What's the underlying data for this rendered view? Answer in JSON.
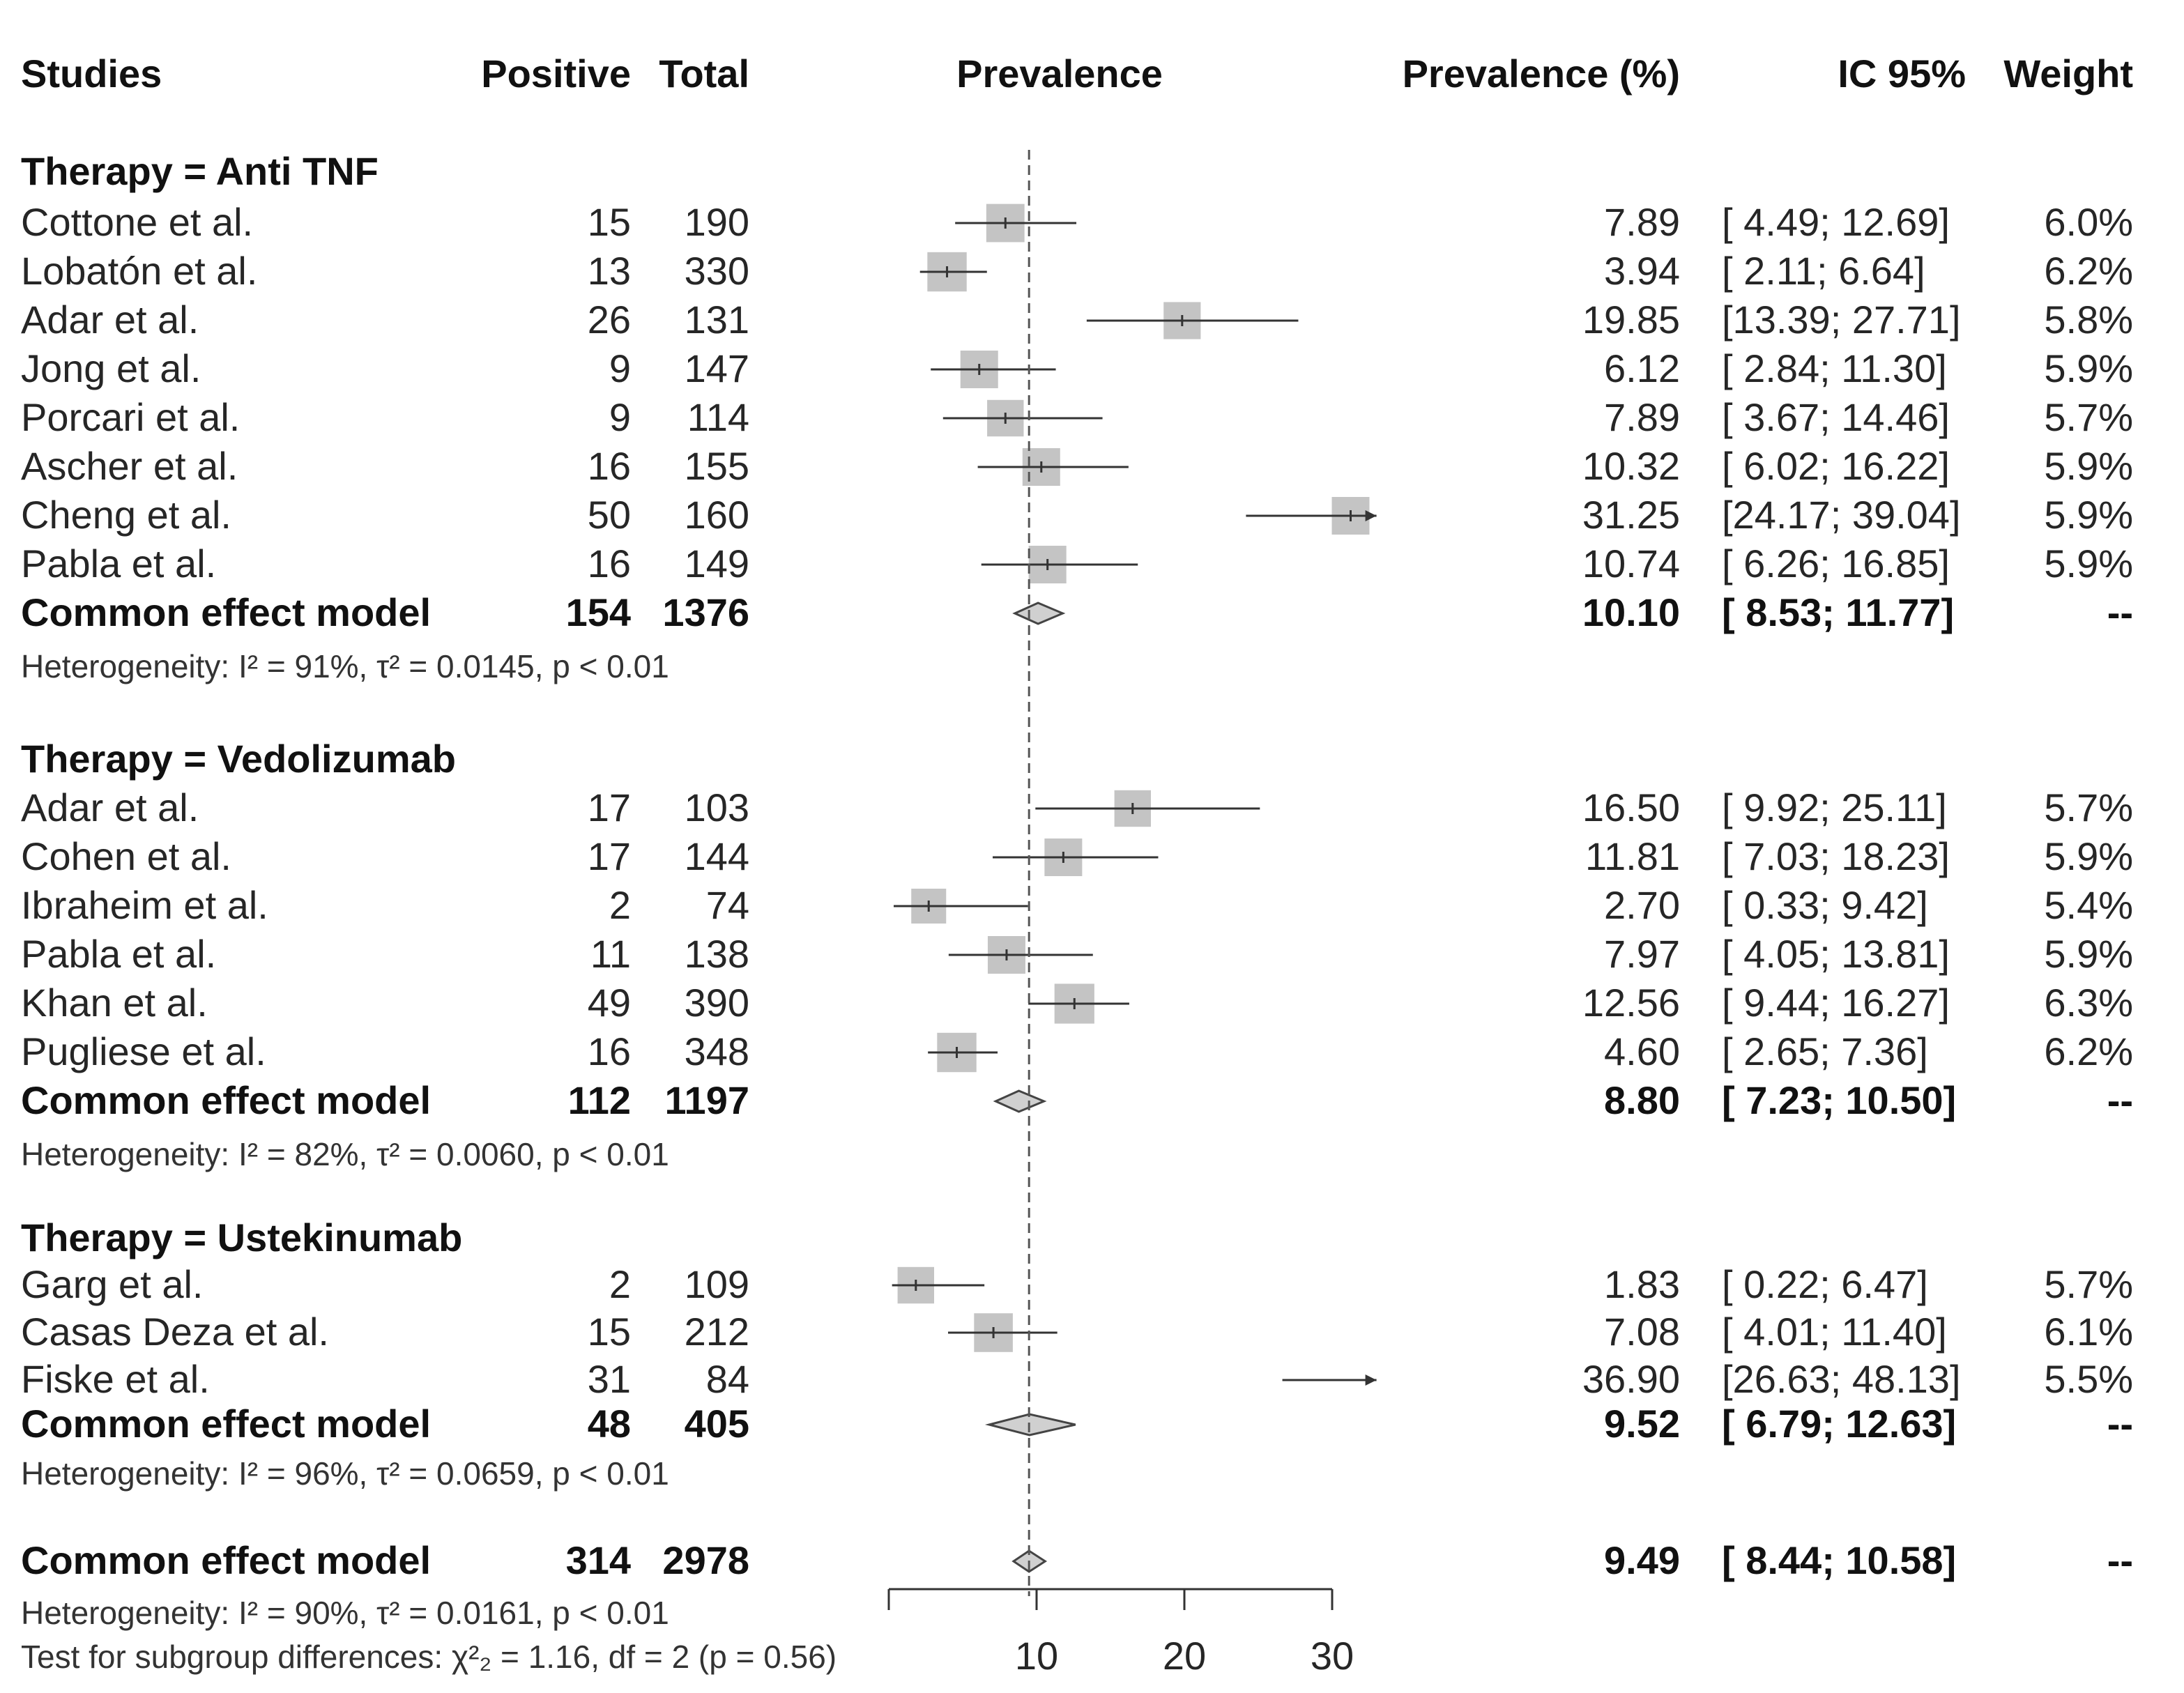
{
  "headers": {
    "studies": "Studies",
    "positive": "Positive",
    "total": "Total",
    "prevalence": "Prevalence",
    "prevalence_pct": "Prevalence (%)",
    "ci": "IC 95%",
    "weight": "Weight"
  },
  "chart_data": {
    "type": "forest",
    "xlabel": "",
    "xlim": [
      0,
      30
    ],
    "xticks": [
      "",
      "10",
      "20",
      "30"
    ],
    "reference_line": 9.49,
    "colors": {
      "box": "#c4c4c4",
      "line": "#333333",
      "diamond": "#d0d0d0"
    },
    "groups": [
      {
        "label": "Therapy = Anti TNF",
        "studies": [
          {
            "name": "Cottone et al.",
            "positive": "15",
            "total": "190",
            "est": "7.89",
            "ci": "[ 4.49; 12.69]",
            "weight": "6.0%",
            "v": 7.89,
            "lo": 4.49,
            "hi": 12.69,
            "w": 6.0
          },
          {
            "name": "Lobatón et al.",
            "positive": "13",
            "total": "330",
            "est": "3.94",
            "ci": "[ 2.11;  6.64]",
            "weight": "6.2%",
            "v": 3.94,
            "lo": 2.11,
            "hi": 6.64,
            "w": 6.2
          },
          {
            "name": "Adar et al.",
            "positive": "26",
            "total": "131",
            "est": "19.85",
            "ci": "[13.39; 27.71]",
            "weight": "5.8%",
            "v": 19.85,
            "lo": 13.39,
            "hi": 27.71,
            "w": 5.8
          },
          {
            "name": "Jong et al.",
            "positive": "9",
            "total": "147",
            "est": "6.12",
            "ci": "[ 2.84; 11.30]",
            "weight": "5.9%",
            "v": 6.12,
            "lo": 2.84,
            "hi": 11.3,
            "w": 5.9
          },
          {
            "name": "Porcari et al.",
            "positive": "9",
            "total": "114",
            "est": "7.89",
            "ci": "[ 3.67; 14.46]",
            "weight": "5.7%",
            "v": 7.89,
            "lo": 3.67,
            "hi": 14.46,
            "w": 5.7
          },
          {
            "name": "Ascher et al.",
            "positive": "16",
            "total": "155",
            "est": "10.32",
            "ci": "[ 6.02; 16.22]",
            "weight": "5.9%",
            "v": 10.32,
            "lo": 6.02,
            "hi": 16.22,
            "w": 5.9
          },
          {
            "name": "Cheng et al.",
            "positive": "50",
            "total": "160",
            "est": "31.25",
            "ci": "[24.17; 39.04]",
            "weight": "5.9%",
            "v": 31.25,
            "lo": 24.17,
            "hi": 39.04,
            "w": 5.9
          },
          {
            "name": "Pabla et al.",
            "positive": "16",
            "total": "149",
            "est": "10.74",
            "ci": "[ 6.26; 16.85]",
            "weight": "5.9%",
            "v": 10.74,
            "lo": 6.26,
            "hi": 16.85,
            "w": 5.9
          }
        ],
        "summary": {
          "label": "Common effect model",
          "positive": "154",
          "total": "1376",
          "est": "10.10",
          "ci": "[ 8.53; 11.77]",
          "weight": "--",
          "v": 10.1,
          "lo": 8.53,
          "hi": 11.77
        },
        "heterogeneity": "Heterogeneity: I² = 91%, τ² = 0.0145, p < 0.01"
      },
      {
        "label": "Therapy = Vedolizumab",
        "studies": [
          {
            "name": "Adar et al.",
            "positive": "17",
            "total": "103",
            "est": "16.50",
            "ci": "[ 9.92; 25.11]",
            "weight": "5.7%",
            "v": 16.5,
            "lo": 9.92,
            "hi": 25.11,
            "w": 5.7
          },
          {
            "name": "Cohen et al.",
            "positive": "17",
            "total": "144",
            "est": "11.81",
            "ci": "[ 7.03; 18.23]",
            "weight": "5.9%",
            "v": 11.81,
            "lo": 7.03,
            "hi": 18.23,
            "w": 5.9
          },
          {
            "name": "Ibraheim et al.",
            "positive": "2",
            "total": "74",
            "est": "2.70",
            "ci": "[ 0.33;  9.42]",
            "weight": "5.4%",
            "v": 2.7,
            "lo": 0.33,
            "hi": 9.42,
            "w": 5.4
          },
          {
            "name": "Pabla et al.",
            "positive": "11",
            "total": "138",
            "est": "7.97",
            "ci": "[ 4.05; 13.81]",
            "weight": "5.9%",
            "v": 7.97,
            "lo": 4.05,
            "hi": 13.81,
            "w": 5.9
          },
          {
            "name": "Khan et al.",
            "positive": "49",
            "total": "390",
            "est": "12.56",
            "ci": "[ 9.44; 16.27]",
            "weight": "6.3%",
            "v": 12.56,
            "lo": 9.44,
            "hi": 16.27,
            "w": 6.3
          },
          {
            "name": "Pugliese et al.",
            "positive": "16",
            "total": "348",
            "est": "4.60",
            "ci": "[ 2.65;  7.36]",
            "weight": "6.2%",
            "v": 4.6,
            "lo": 2.65,
            "hi": 7.36,
            "w": 6.2
          }
        ],
        "summary": {
          "label": "Common effect model",
          "positive": "112",
          "total": "1197",
          "est": "8.80",
          "ci": "[ 7.23; 10.50]",
          "weight": "--",
          "v": 8.8,
          "lo": 7.23,
          "hi": 10.5
        },
        "heterogeneity": "Heterogeneity: I² = 82%, τ² = 0.0060, p < 0.01"
      },
      {
        "label": "Therapy = Ustekinumab",
        "studies": [
          {
            "name": "Garg et al.",
            "positive": "2",
            "total": "109",
            "est": "1.83",
            "ci": "[ 0.22;  6.47]",
            "weight": "5.7%",
            "v": 1.83,
            "lo": 0.22,
            "hi": 6.47,
            "w": 5.7
          },
          {
            "name": "Casas Deza et al.",
            "positive": "15",
            "total": "212",
            "est": "7.08",
            "ci": "[ 4.01; 11.40]",
            "weight": "6.1%",
            "v": 7.08,
            "lo": 4.01,
            "hi": 11.4,
            "w": 6.1
          },
          {
            "name": "Fiske et al.",
            "positive": "31",
            "total": "84",
            "est": "36.90",
            "ci": "[26.63; 48.13]",
            "weight": "5.5%",
            "v": 36.9,
            "lo": 26.63,
            "hi": 48.13,
            "w": 5.5
          }
        ],
        "summary": {
          "label": "Common effect model",
          "positive": "48",
          "total": "405",
          "est": "9.52",
          "ci": "[ 6.79; 12.63]",
          "weight": "--",
          "v": 9.52,
          "lo": 6.79,
          "hi": 12.63
        },
        "heterogeneity": "Heterogeneity: I² = 96%, τ² = 0.0659, p < 0.01"
      }
    ],
    "overall": {
      "label": "Common effect model",
      "positive": "314",
      "total": "2978",
      "est": "9.49",
      "ci": "[ 8.44; 10.58]",
      "weight": "--",
      "v": 9.49,
      "lo": 8.44,
      "hi": 10.58
    },
    "overall_heterogeneity": "Heterogeneity: I² = 90%, τ² = 0.0161, p < 0.01",
    "subgroup_test": "Test for subgroup differences: χ²₂ = 1.16, df = 2 (p = 0.56)"
  }
}
